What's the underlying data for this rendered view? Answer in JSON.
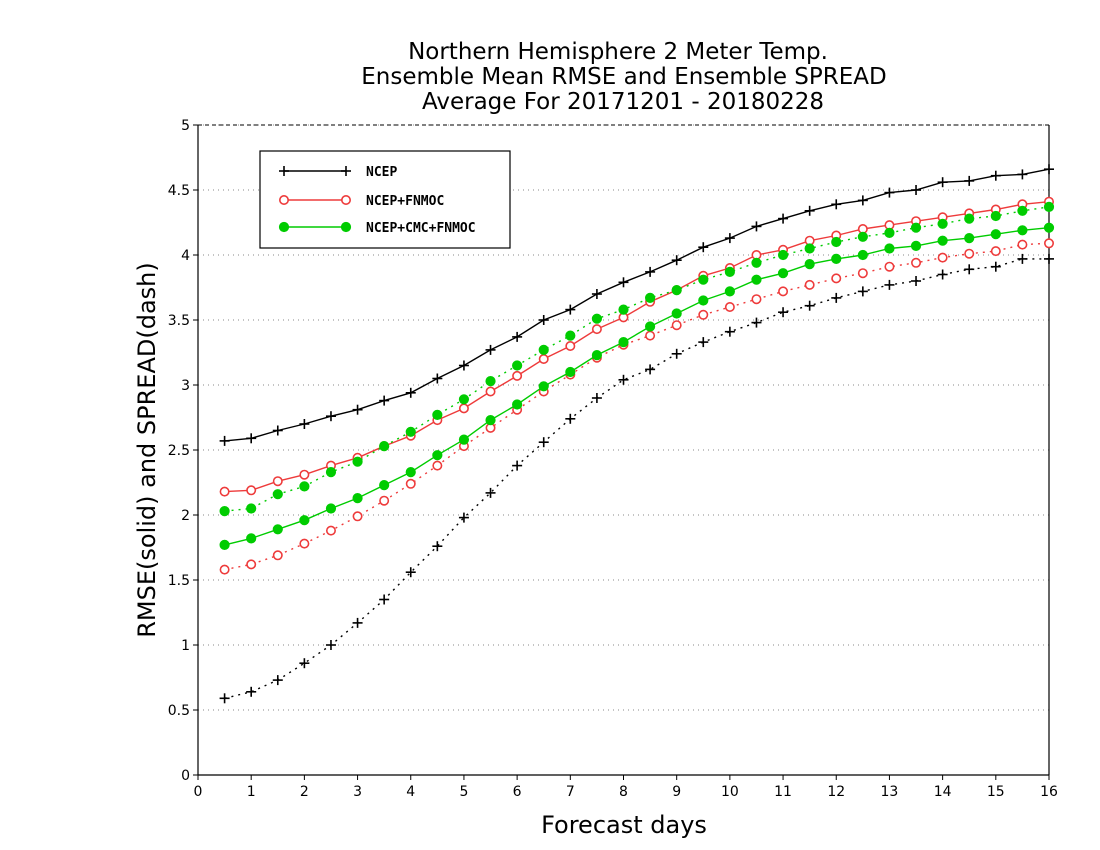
{
  "chart_data": {
    "type": "line",
    "title": [
      "Northern Hemisphere 2 Meter Temp.",
      "Ensemble Mean RMSE and Ensemble SPREAD",
      "Average For 20171201 - 20180228"
    ],
    "xlabel": "Forecast days",
    "ylabel": "RMSE(solid) and SPREAD(dash)",
    "xlim": [
      0,
      16
    ],
    "ylim": [
      0,
      5
    ],
    "xticks": [
      "0",
      "1",
      "2",
      "3",
      "4",
      "5",
      "6",
      "7",
      "8",
      "9",
      "10",
      "11",
      "12",
      "13",
      "14",
      "15",
      "16"
    ],
    "yticks": [
      "0",
      "0.5",
      "1",
      "1.5",
      "2",
      "2.5",
      "3",
      "3.5",
      "4",
      "4.5",
      "5"
    ],
    "grid": "horizontal dotted",
    "legend_position": "top-left",
    "x": [
      0.5,
      1,
      1.5,
      2,
      2.5,
      3,
      3.5,
      4,
      4.5,
      5,
      5.5,
      6,
      6.5,
      7,
      7.5,
      8,
      8.5,
      9,
      9.5,
      10,
      10.5,
      11,
      11.5,
      12,
      12.5,
      13,
      13.5,
      14,
      14.5,
      15,
      15.5,
      16
    ],
    "series": [
      {
        "name": "NCEP",
        "color": "#000000",
        "marker": "plus",
        "rmse": [
          2.57,
          2.59,
          2.65,
          2.7,
          2.76,
          2.81,
          2.88,
          2.94,
          3.05,
          3.15,
          3.27,
          3.37,
          3.5,
          3.58,
          3.7,
          3.79,
          3.87,
          3.96,
          4.06,
          4.13,
          4.22,
          4.28,
          4.34,
          4.39,
          4.42,
          4.48,
          4.5,
          4.56,
          4.57,
          4.61,
          4.62,
          4.66
        ],
        "spread": [
          0.59,
          0.64,
          0.73,
          0.86,
          1.0,
          1.17,
          1.35,
          1.56,
          1.76,
          1.98,
          2.17,
          2.38,
          2.56,
          2.74,
          2.9,
          3.04,
          3.12,
          3.24,
          3.33,
          3.41,
          3.48,
          3.56,
          3.61,
          3.67,
          3.72,
          3.77,
          3.8,
          3.85,
          3.89,
          3.91,
          3.97,
          3.97
        ]
      },
      {
        "name": "NCEP+FNMOC",
        "color": "#ee3b3b",
        "marker": "open-circle",
        "rmse": [
          2.18,
          2.19,
          2.26,
          2.31,
          2.38,
          2.44,
          2.53,
          2.61,
          2.73,
          2.82,
          2.95,
          3.07,
          3.2,
          3.3,
          3.43,
          3.52,
          3.64,
          3.73,
          3.84,
          3.9,
          4.0,
          4.04,
          4.11,
          4.15,
          4.2,
          4.23,
          4.26,
          4.29,
          4.32,
          4.35,
          4.39,
          4.41
        ],
        "spread": [
          1.58,
          1.62,
          1.69,
          1.78,
          1.88,
          1.99,
          2.11,
          2.24,
          2.38,
          2.53,
          2.67,
          2.81,
          2.95,
          3.08,
          3.21,
          3.31,
          3.38,
          3.46,
          3.54,
          3.6,
          3.66,
          3.72,
          3.77,
          3.82,
          3.86,
          3.91,
          3.94,
          3.98,
          4.01,
          4.03,
          4.08,
          4.09
        ]
      },
      {
        "name": "NCEP+CMC+FNMOC",
        "color": "#00cc00",
        "marker": "filled-circle",
        "rmse": [
          1.77,
          1.82,
          1.89,
          1.96,
          2.05,
          2.13,
          2.23,
          2.33,
          2.46,
          2.58,
          2.73,
          2.85,
          2.99,
          3.1,
          3.23,
          3.33,
          3.45,
          3.55,
          3.65,
          3.72,
          3.81,
          3.86,
          3.93,
          3.97,
          4.0,
          4.05,
          4.07,
          4.11,
          4.13,
          4.16,
          4.19,
          4.21
        ],
        "spread": [
          2.03,
          2.05,
          2.16,
          2.22,
          2.33,
          2.41,
          2.53,
          2.64,
          2.77,
          2.89,
          3.03,
          3.15,
          3.27,
          3.38,
          3.51,
          3.58,
          3.67,
          3.73,
          3.81,
          3.87,
          3.94,
          4.0,
          4.05,
          4.1,
          4.14,
          4.17,
          4.21,
          4.24,
          4.28,
          4.3,
          4.34,
          4.37
        ]
      }
    ]
  }
}
